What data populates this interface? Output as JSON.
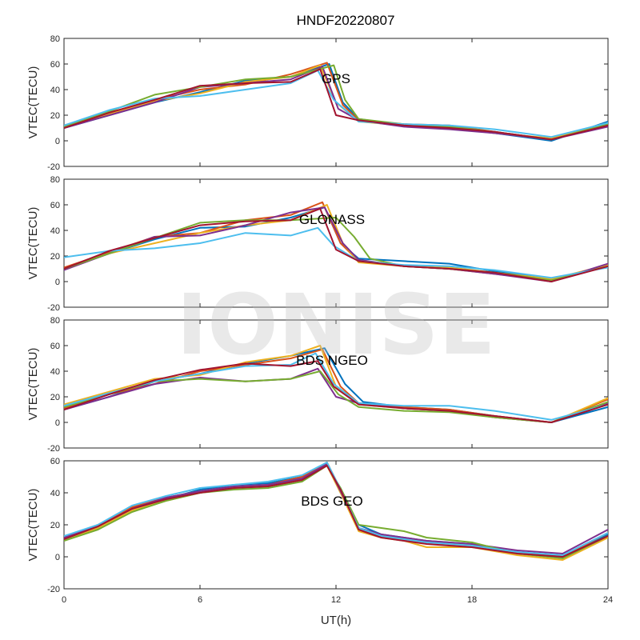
{
  "chart_data": {
    "type": "line",
    "title": "HNDF20220807",
    "xlabel": "UT(h)",
    "x_range": [
      0,
      24
    ],
    "x_ticks": [
      "0",
      "6",
      "12",
      "18",
      "24"
    ],
    "watermark": "IONISE",
    "series_colors": [
      "#0072BD",
      "#D95319",
      "#EDB120",
      "#7E2F8E",
      "#77AC30",
      "#4DBEEE",
      "#A2142F"
    ],
    "panels": [
      {
        "label": "GPS",
        "ylabel": "VTEC(TECU)",
        "ylim": [
          -20,
          80
        ],
        "yticks": [
          "-20",
          "0",
          "20",
          "40",
          "60",
          "80"
        ],
        "series": [
          {
            "x": [
              0,
              2,
              4,
              6,
              8,
              10,
              11.7,
              12.3,
              13,
              15,
              17,
              19,
              21.5,
              24
            ],
            "y": [
              10,
              20,
              30,
              38,
              47,
              50,
              60,
              30,
              17,
              12,
              10,
              6,
              0,
              15
            ]
          },
          {
            "x": [
              0,
              2,
              4,
              6,
              8,
              10,
              11.6,
              12.3,
              13,
              15,
              17,
              19,
              21.5,
              24
            ],
            "y": [
              12,
              22,
              32,
              40,
              44,
              52,
              61,
              28,
              16,
              13,
              12,
              7,
              1,
              12
            ]
          },
          {
            "x": [
              0,
              2,
              4,
              6,
              8,
              10,
              11.3,
              12,
              13,
              15,
              17,
              19,
              21.5,
              24
            ],
            "y": [
              11,
              21,
              31,
              37,
              46,
              50,
              59,
              30,
              15,
              12,
              10,
              6,
              2,
              14
            ]
          },
          {
            "x": [
              0,
              2,
              4,
              6,
              8,
              10,
              11.4,
              12.1,
              13,
              15,
              17,
              19,
              21.5,
              24
            ],
            "y": [
              10,
              20,
              30,
              42,
              45,
              48,
              58,
              25,
              16,
              11,
              9,
              6,
              1,
              11
            ]
          },
          {
            "x": [
              0,
              2,
              4,
              6,
              8,
              10,
              11.9,
              12.4,
              13,
              15,
              17,
              19,
              21.5,
              24
            ],
            "y": [
              11,
              23,
              36,
              42,
              48,
              50,
              59,
              32,
              17,
              13,
              11,
              7,
              1,
              13
            ]
          },
          {
            "x": [
              0,
              2,
              4,
              6,
              8,
              10,
              11.2,
              11.9,
              13,
              15,
              17,
              19,
              21.5,
              24
            ],
            "y": [
              12,
              24,
              33,
              35,
              40,
              45,
              55,
              32,
              15,
              13,
              12,
              9,
              3,
              14
            ]
          },
          {
            "x": [
              0,
              2,
              4,
              6,
              8,
              10,
              11.3,
              12,
              13,
              15,
              17,
              19,
              21.5,
              24
            ],
            "y": [
              10,
              22,
              32,
              43,
              45,
              46,
              56,
              20,
              16,
              12,
              10,
              7,
              1,
              12
            ]
          }
        ]
      },
      {
        "label": "GLONASS",
        "ylabel": "VTEC(TECU)",
        "ylim": [
          -20,
          80
        ],
        "yticks": [
          "-20",
          "0",
          "20",
          "40",
          "60",
          "80"
        ],
        "series": [
          {
            "x": [
              0,
              2,
              4,
              6,
              8,
              10,
              11.5,
              12.2,
              13,
              15,
              17,
              19,
              21.5,
              24
            ],
            "y": [
              10,
              22,
              33,
              42,
              43,
              50,
              58,
              30,
              18,
              16,
              14,
              8,
              2,
              12
            ]
          },
          {
            "x": [
              0,
              2,
              4,
              6,
              8,
              10,
              11.4,
              12.2,
              13,
              15,
              17,
              19,
              21.5,
              24
            ],
            "y": [
              11,
              23,
              35,
              38,
              48,
              52,
              62,
              30,
              16,
              12,
              10,
              6,
              1,
              13
            ]
          },
          {
            "x": [
              0,
              2,
              4,
              6,
              8,
              10,
              11.6,
              12.3,
              13,
              15,
              17,
              19,
              21.5,
              24
            ],
            "y": [
              10,
              22,
              30,
              38,
              44,
              48,
              60,
              30,
              15,
              12,
              11,
              7,
              2,
              13
            ]
          },
          {
            "x": [
              0,
              2,
              4,
              6,
              8,
              10,
              11.5,
              12.3,
              13,
              15,
              17,
              19,
              21.5,
              24
            ],
            "y": [
              9,
              22,
              35,
              36,
              44,
              54,
              58,
              30,
              17,
              12,
              10,
              6,
              0,
              14
            ]
          },
          {
            "x": [
              0,
              2,
              4,
              6,
              8,
              10,
              12,
              12.8,
              13.5,
              15,
              17,
              19,
              21.5,
              24
            ],
            "y": [
              10,
              22,
              34,
              46,
              48,
              48,
              50,
              35,
              18,
              12,
              10,
              7,
              1,
              12
            ]
          },
          {
            "x": [
              0,
              2,
              4,
              6,
              8,
              10,
              11.2,
              11.9,
              13,
              15,
              17,
              19,
              21.5,
              24
            ],
            "y": [
              19,
              24,
              26,
              30,
              38,
              36,
              42,
              28,
              16,
              13,
              12,
              9,
              3,
              11
            ]
          },
          {
            "x": [
              0,
              2,
              4,
              6,
              8,
              10,
              11.3,
              12,
              13,
              15,
              17,
              19,
              21.5,
              24
            ],
            "y": [
              10,
              24,
              34,
              44,
              47,
              48,
              57,
              25,
              16,
              12,
              10,
              7,
              0,
              12
            ]
          }
        ]
      },
      {
        "label": "BDS NGEO",
        "ylabel": "VTEC(TECU)",
        "ylim": [
          -20,
          80
        ],
        "yticks": [
          "-20",
          "0",
          "20",
          "40",
          "60",
          "80"
        ],
        "series": [
          {
            "x": [
              0,
              2,
              4,
              6,
              8,
              10,
              11.5,
              12.4,
              13.2,
              15,
              17,
              19,
              21.5,
              24
            ],
            "y": [
              10,
              20,
              32,
              38,
              46,
              52,
              58,
              30,
              16,
              12,
              10,
              5,
              0,
              12
            ]
          },
          {
            "x": [
              0,
              2,
              4,
              6,
              8,
              10,
              11.4,
              12.2,
              13,
              15,
              17,
              19,
              21.5,
              24
            ],
            "y": [
              11,
              22,
              30,
              40,
              45,
              50,
              57,
              28,
              15,
              12,
              10,
              5,
              0,
              18
            ]
          },
          {
            "x": [
              0,
              2,
              4,
              6,
              8,
              10,
              11.3,
              12,
              13,
              15,
              17,
              19,
              21.5,
              24
            ],
            "y": [
              14,
              24,
              34,
              37,
              47,
              52,
              60,
              28,
              14,
              11,
              9,
              4,
              0,
              19
            ]
          },
          {
            "x": [
              0,
              2,
              4,
              6,
              8,
              10,
              11.2,
              12,
              13,
              15,
              17,
              19,
              21.5,
              24
            ],
            "y": [
              10,
              20,
              30,
              35,
              32,
              34,
              42,
              20,
              15,
              11,
              9,
              4,
              0,
              15
            ]
          },
          {
            "x": [
              0,
              2,
              4,
              6,
              8,
              10,
              11.3,
              12.1,
              13,
              15,
              17,
              19,
              21.5,
              24
            ],
            "y": [
              12,
              22,
              32,
              34,
              32,
              34,
              40,
              22,
              12,
              9,
              8,
              4,
              0,
              16
            ]
          },
          {
            "x": [
              0,
              2,
              4,
              6,
              8,
              10,
              11.1,
              11.9,
              13,
              15,
              17,
              19,
              21.5,
              24
            ],
            "y": [
              13,
              23,
              32,
              38,
              44,
              45,
              54,
              30,
              15,
              13,
              13,
              9,
              2,
              14
            ]
          },
          {
            "x": [
              0,
              2,
              4,
              6,
              8,
              10,
              11.2,
              11.9,
              13,
              15,
              17,
              19,
              21.5,
              24
            ],
            "y": [
              10,
              22,
              33,
              41,
              46,
              44,
              48,
              28,
              14,
              11,
              9,
              5,
              0,
              14
            ]
          }
        ]
      },
      {
        "label": "BDS GEO",
        "ylabel": "VTEC(TECU)",
        "ylim": [
          -20,
          60
        ],
        "yticks": [
          "-20",
          "0",
          "20",
          "40",
          "60"
        ],
        "series": [
          {
            "x": [
              0,
              1.5,
              3,
              4.5,
              6,
              7.5,
              9,
              10.5,
              11.6,
              12.2,
              13,
              14,
              15,
              16,
              18,
              20,
              22,
              24
            ],
            "y": [
              11,
              18,
              30,
              36,
              42,
              45,
              46,
              50,
              58,
              40,
              20,
              14,
              12,
              10,
              8,
              2,
              0,
              14
            ]
          },
          {
            "x": [
              0,
              1.5,
              3,
              4.5,
              6,
              7.5,
              9,
              10.5,
              11.6,
              12.2,
              13,
              14,
              15,
              16,
              18,
              20,
              22,
              24
            ],
            "y": [
              12,
              20,
              31,
              37,
              41,
              44,
              45,
              50,
              59,
              42,
              18,
              13,
              11,
              9,
              7,
              3,
              0,
              15
            ]
          },
          {
            "x": [
              0,
              1.5,
              3,
              4.5,
              6,
              7.5,
              9,
              10.5,
              11.6,
              12.2,
              13,
              14,
              15,
              16,
              18,
              20,
              22,
              24
            ],
            "y": [
              10,
              18,
              29,
              35,
              40,
              43,
              44,
              49,
              57,
              40,
              16,
              12,
              10,
              6,
              6,
              1,
              -2,
              12
            ]
          },
          {
            "x": [
              0,
              1.5,
              3,
              4.5,
              6,
              7.5,
              9,
              10.5,
              11.6,
              12.2,
              13,
              14,
              15,
              16,
              18,
              20,
              22,
              24
            ],
            "y": [
              12,
              19,
              30,
              37,
              41,
              44,
              45,
              49,
              58,
              41,
              18,
              14,
              12,
              10,
              8,
              4,
              2,
              17
            ]
          },
          {
            "x": [
              0,
              1.5,
              3,
              4.5,
              6,
              7.5,
              9,
              10.5,
              11.6,
              12.2,
              13,
              14,
              15,
              16,
              18,
              20,
              22,
              24
            ],
            "y": [
              10,
              17,
              28,
              35,
              40,
              42,
              43,
              47,
              57,
              43,
              20,
              18,
              16,
              12,
              9,
              2,
              -1,
              13
            ]
          },
          {
            "x": [
              0,
              1.5,
              3,
              4.5,
              6,
              7.5,
              9,
              10.5,
              11.6,
              12.2,
              13,
              14,
              15,
              16,
              18,
              20,
              22,
              24
            ],
            "y": [
              13,
              20,
              32,
              38,
              43,
              45,
              47,
              51,
              59,
              42,
              18,
              13,
              11,
              9,
              7,
              3,
              1,
              15
            ]
          },
          {
            "x": [
              0,
              1.5,
              3,
              4.5,
              6,
              7.5,
              9,
              10.5,
              11.6,
              12.2,
              13,
              14,
              15,
              16,
              18,
              20,
              22,
              24
            ],
            "y": [
              11,
              19,
              30,
              36,
              40,
              43,
              44,
              48,
              57,
              42,
              17,
              12,
              10,
              8,
              6,
              2,
              0,
              13
            ]
          }
        ]
      }
    ]
  }
}
